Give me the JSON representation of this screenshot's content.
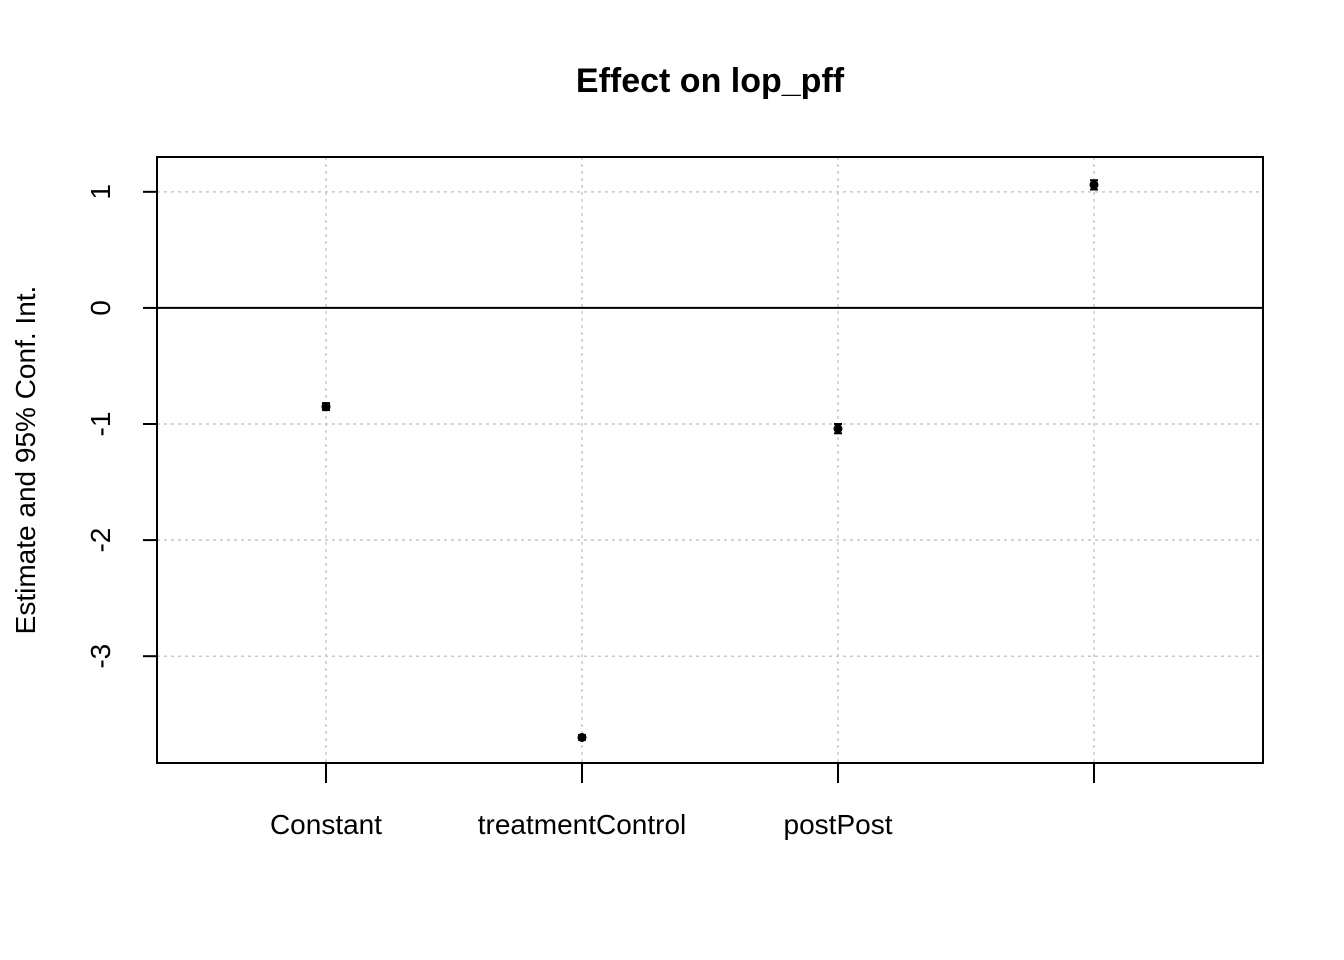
{
  "chart_data": {
    "type": "scatter",
    "title": "Effect on lop_pff",
    "ylabel": "Estimate and 95% Conf. Int.",
    "xlabel": "",
    "categories": [
      "Constant",
      "treatmentControl",
      "postPost",
      ""
    ],
    "series": [
      {
        "values": [
          -0.85,
          -3.7,
          -1.04,
          1.06
        ],
        "ci_low": [
          -0.88,
          -3.72,
          -1.08,
          1.02
        ],
        "ci_high": [
          -0.82,
          -3.68,
          -1.0,
          1.1
        ]
      }
    ],
    "yticks": [
      -3,
      -2,
      -1,
      0,
      1
    ],
    "ylim": [
      -3.92,
      1.3
    ],
    "reference_line": 0,
    "grid": true
  }
}
